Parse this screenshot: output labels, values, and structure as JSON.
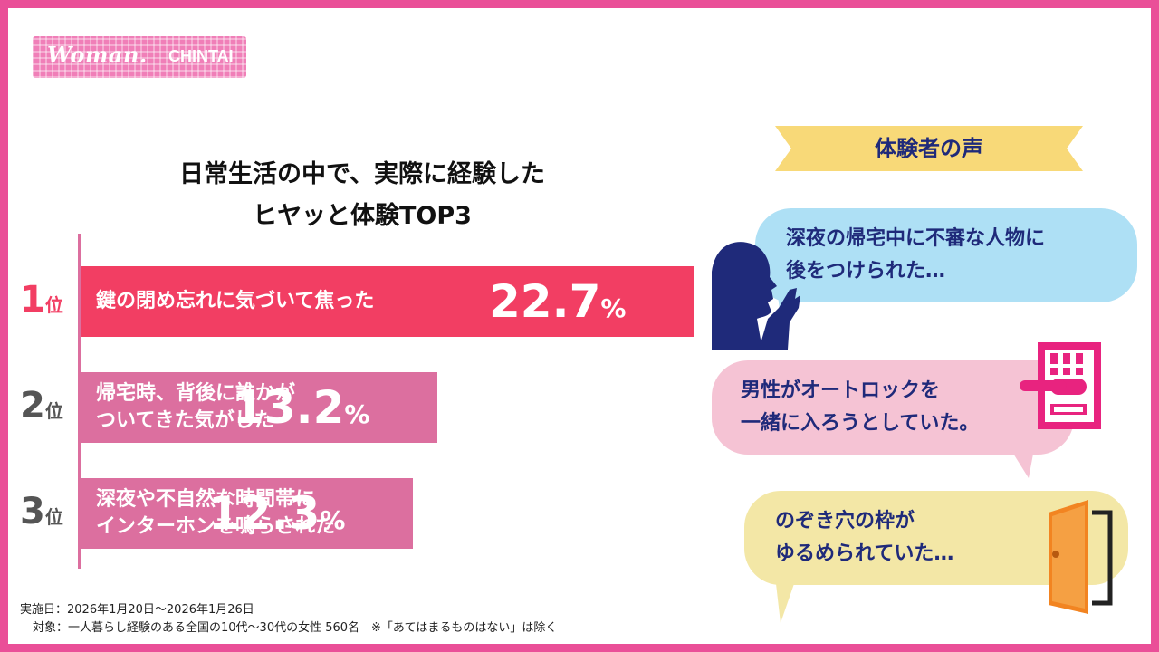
{
  "brand": {
    "logo_main": "Woman.",
    "logo_sub": "CHINTAI"
  },
  "title": {
    "line1": "日常生活の中で、実際に経験した",
    "line2": "ヒヤッと体験TOP3"
  },
  "chart_data": {
    "type": "bar",
    "orientation": "horizontal",
    "title": "日常生活の中で、実際に経験した ヒヤッと体験TOP3",
    "unit": "%",
    "categories": [
      "鍵の閉め忘れに気づいて焦った",
      "帰宅時、背後に誰かが ついてきた気がした",
      "深夜や不自然な時間帯に インターホンを鳴らされた"
    ],
    "values": [
      22.7,
      13.2,
      12.3
    ],
    "ranks": [
      {
        "num": "1",
        "unit": "位"
      },
      {
        "num": "2",
        "unit": "位"
      },
      {
        "num": "3",
        "unit": "位"
      }
    ],
    "label_lines": [
      [
        "鍵の閉め忘れに気づいて焦った"
      ],
      [
        "帰宅時、背後に誰かが",
        "ついてきた気がした"
      ],
      [
        "深夜や不自然な時間帯に",
        "インターホンを鳴らされた"
      ]
    ],
    "value_labels": [
      "22.7",
      "13.2",
      "12.3"
    ],
    "percent_sign": "%",
    "xlim": [
      0,
      22.7
    ],
    "colors": {
      "top": "#f23e63",
      "rest": "#dc6f9f",
      "rank_top": "#f23e63",
      "rank_rest": "#555555",
      "axis": "#dc6f9f"
    },
    "grid": false,
    "legend": "none"
  },
  "voices": {
    "header": "体験者の声",
    "ribbon_color": "#f8d978",
    "items": [
      {
        "lines": [
          "深夜の帰宅中に不審な人物に",
          "後をつけられた…"
        ],
        "color": "#aee0f5",
        "icon": "woman-silhouette-icon"
      },
      {
        "lines": [
          "男性がオートロックを",
          "一緒に入ろうとしていた。"
        ],
        "color": "#f5c3d4",
        "icon": "intercom-lock-icon"
      },
      {
        "lines": [
          "のぞき穴の枠が",
          "ゆるめられていた…"
        ],
        "color": "#f3e7a6",
        "icon": "door-icon"
      }
    ]
  },
  "footnote": {
    "line1": "実施日：2026年1月20日～2026年1月26日",
    "line2": "対象：一人暮らし経験のある全国の10代～30代の女性 560名　※「あてはまるものはない」は除く"
  }
}
